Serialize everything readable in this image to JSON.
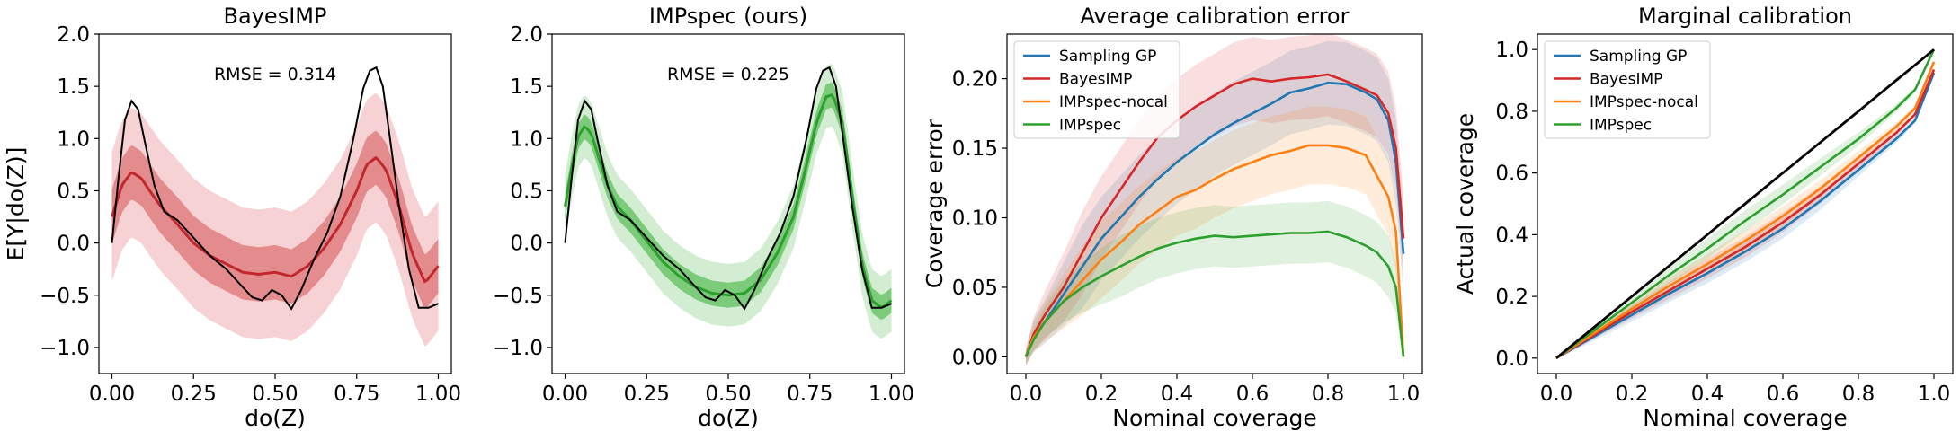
{
  "chart_data": [
    {
      "type": "line",
      "title": "BayesIMP",
      "xlabel": "do(Z)",
      "ylabel": "E[Y|do(Z)]",
      "xlim": [
        -0.04,
        1.04
      ],
      "ylim": [
        -1.25,
        2.0
      ],
      "xticks": [
        "0.00",
        "0.25",
        "0.50",
        "0.75",
        "1.00"
      ],
      "yticks": [
        "−1.0",
        "−0.5",
        "0.0",
        "0.5",
        "1.0",
        "1.5",
        "2.0"
      ],
      "annotation": "RMSE = 0.314",
      "colors": {
        "mean": "#c0282d",
        "inner": "#e07f80",
        "outer": "#f5cdd0",
        "truth": "#000000"
      },
      "truth": {
        "x": [
          0,
          0.02,
          0.04,
          0.06,
          0.08,
          0.1,
          0.13,
          0.16,
          0.2,
          0.25,
          0.3,
          0.35,
          0.4,
          0.43,
          0.46,
          0.49,
          0.52,
          0.55,
          0.58,
          0.62,
          0.66,
          0.7,
          0.74,
          0.77,
          0.79,
          0.81,
          0.83,
          0.85,
          0.88,
          0.91,
          0.94,
          0.97,
          1.0
        ],
        "y": [
          0.0,
          0.62,
          1.18,
          1.36,
          1.28,
          0.98,
          0.55,
          0.3,
          0.22,
          0.05,
          -0.12,
          -0.25,
          -0.42,
          -0.52,
          -0.55,
          -0.45,
          -0.5,
          -0.63,
          -0.45,
          -0.15,
          0.1,
          0.45,
          1.0,
          1.48,
          1.65,
          1.68,
          1.5,
          1.05,
          0.35,
          -0.25,
          -0.62,
          -0.62,
          -0.58
        ]
      },
      "mean": {
        "x": [
          0,
          0.03,
          0.06,
          0.09,
          0.12,
          0.15,
          0.2,
          0.25,
          0.3,
          0.35,
          0.4,
          0.45,
          0.5,
          0.55,
          0.6,
          0.65,
          0.7,
          0.75,
          0.78,
          0.81,
          0.84,
          0.88,
          0.92,
          0.96,
          1.0
        ],
        "y": [
          0.25,
          0.55,
          0.68,
          0.62,
          0.48,
          0.35,
          0.18,
          0.0,
          -0.12,
          -0.2,
          -0.28,
          -0.3,
          -0.28,
          -0.32,
          -0.22,
          -0.05,
          0.18,
          0.5,
          0.75,
          0.82,
          0.7,
          0.35,
          -0.1,
          -0.38,
          -0.22
        ]
      },
      "inner_half_width": 0.26,
      "outer_half_width": 0.62
    },
    {
      "type": "line",
      "title": "IMPspec (ours)",
      "xlabel": "do(Z)",
      "ylabel": "",
      "xlim": [
        -0.04,
        1.04
      ],
      "ylim": [
        -1.25,
        2.0
      ],
      "xticks": [
        "0.00",
        "0.25",
        "0.50",
        "0.75",
        "1.00"
      ],
      "yticks": [
        "−1.0",
        "−0.5",
        "0.0",
        "0.5",
        "1.0",
        "1.5",
        "2.0"
      ],
      "annotation": "RMSE = 0.225",
      "colors": {
        "mean": "#2ca02c",
        "inner": "#6cc46c",
        "outer": "#cdebcd",
        "truth": "#000000"
      },
      "truth": {
        "x": [
          0,
          0.02,
          0.04,
          0.06,
          0.08,
          0.1,
          0.13,
          0.16,
          0.2,
          0.25,
          0.3,
          0.35,
          0.4,
          0.43,
          0.46,
          0.49,
          0.52,
          0.55,
          0.58,
          0.62,
          0.66,
          0.7,
          0.74,
          0.77,
          0.79,
          0.81,
          0.83,
          0.85,
          0.88,
          0.91,
          0.94,
          0.97,
          1.0
        ],
        "y": [
          0.0,
          0.62,
          1.18,
          1.36,
          1.28,
          0.98,
          0.55,
          0.3,
          0.22,
          0.05,
          -0.12,
          -0.25,
          -0.42,
          -0.52,
          -0.55,
          -0.45,
          -0.5,
          -0.63,
          -0.45,
          -0.15,
          0.1,
          0.45,
          1.0,
          1.48,
          1.65,
          1.68,
          1.5,
          1.05,
          0.35,
          -0.25,
          -0.62,
          -0.62,
          -0.58
        ]
      },
      "mean": {
        "x": [
          0,
          0.02,
          0.04,
          0.06,
          0.08,
          0.1,
          0.13,
          0.16,
          0.2,
          0.25,
          0.3,
          0.35,
          0.4,
          0.45,
          0.5,
          0.55,
          0.6,
          0.65,
          0.7,
          0.74,
          0.77,
          0.8,
          0.82,
          0.85,
          0.88,
          0.91,
          0.94,
          0.97,
          1.0
        ],
        "y": [
          0.35,
          0.72,
          1.02,
          1.12,
          1.05,
          0.85,
          0.55,
          0.35,
          0.22,
          0.02,
          -0.18,
          -0.32,
          -0.42,
          -0.48,
          -0.5,
          -0.48,
          -0.35,
          -0.1,
          0.25,
          0.75,
          1.15,
          1.4,
          1.42,
          1.15,
          0.45,
          -0.2,
          -0.55,
          -0.62,
          -0.55
        ]
      },
      "inner_half_width": 0.12,
      "outer_half_width": 0.3
    },
    {
      "type": "line",
      "title": "Average calibration error",
      "xlabel": "Nominal coverage",
      "ylabel": "Coverage error",
      "xlim": [
        -0.05,
        1.05
      ],
      "ylim": [
        -0.012,
        0.232
      ],
      "xticks": [
        "0.0",
        "0.2",
        "0.4",
        "0.6",
        "0.8",
        "1.0"
      ],
      "yticks": [
        "0.00",
        "0.05",
        "0.10",
        "0.15",
        "0.20"
      ],
      "legend": {
        "placement": "upper-left",
        "entries": [
          "Sampling GP",
          "BayesIMP",
          "IMPspec-nocal",
          "IMPspec"
        ]
      },
      "x": [
        0,
        0.02,
        0.05,
        0.1,
        0.15,
        0.2,
        0.25,
        0.3,
        0.35,
        0.4,
        0.45,
        0.5,
        0.55,
        0.6,
        0.65,
        0.7,
        0.75,
        0.8,
        0.85,
        0.9,
        0.93,
        0.96,
        0.98,
        1.0
      ],
      "series": [
        {
          "name": "Sampling GP",
          "color": "#1f77b4",
          "values": [
            0,
            0.015,
            0.025,
            0.045,
            0.065,
            0.085,
            0.1,
            0.115,
            0.128,
            0.14,
            0.15,
            0.16,
            0.168,
            0.175,
            0.182,
            0.19,
            0.193,
            0.197,
            0.196,
            0.19,
            0.185,
            0.17,
            0.14,
            0.074
          ],
          "band": 0.03
        },
        {
          "name": "BayesIMP",
          "color": "#d62728",
          "values": [
            0,
            0.016,
            0.03,
            0.05,
            0.075,
            0.1,
            0.12,
            0.14,
            0.158,
            0.17,
            0.18,
            0.188,
            0.196,
            0.2,
            0.198,
            0.2,
            0.201,
            0.203,
            0.198,
            0.192,
            0.188,
            0.175,
            0.15,
            0.085
          ],
          "band": 0.03
        },
        {
          "name": "IMPspec-nocal",
          "color": "#ff7f0e",
          "values": [
            0,
            0.014,
            0.025,
            0.04,
            0.055,
            0.07,
            0.082,
            0.095,
            0.105,
            0.115,
            0.12,
            0.128,
            0.135,
            0.14,
            0.145,
            0.148,
            0.152,
            0.152,
            0.15,
            0.145,
            0.13,
            0.115,
            0.09,
            0.0
          ],
          "band": 0.028
        },
        {
          "name": "IMPspec",
          "color": "#2ca02c",
          "values": [
            0,
            0.012,
            0.025,
            0.04,
            0.05,
            0.058,
            0.065,
            0.072,
            0.078,
            0.082,
            0.085,
            0.087,
            0.086,
            0.087,
            0.088,
            0.089,
            0.089,
            0.09,
            0.086,
            0.08,
            0.075,
            0.065,
            0.05,
            0.0
          ],
          "band": 0.022
        }
      ]
    },
    {
      "type": "line",
      "title": "Marginal calibration",
      "xlabel": "Nominal coverage",
      "ylabel": "Actual coverage",
      "xlim": [
        -0.05,
        1.05
      ],
      "ylim": [
        -0.05,
        1.05
      ],
      "xticks": [
        "0.0",
        "0.2",
        "0.4",
        "0.6",
        "0.8",
        "1.0"
      ],
      "yticks": [
        "0.0",
        "0.2",
        "0.4",
        "0.6",
        "0.8",
        "1.0"
      ],
      "legend": {
        "placement": "upper-left",
        "entries": [
          "Sampling GP",
          "BayesIMP",
          "IMPspec-nocal",
          "IMPspec"
        ]
      },
      "x": [
        0,
        0.1,
        0.2,
        0.3,
        0.4,
        0.5,
        0.6,
        0.7,
        0.8,
        0.9,
        0.95,
        1.0
      ],
      "series": [
        {
          "name": "Sampling GP",
          "color": "#1f77b4",
          "values": [
            0,
            0.07,
            0.14,
            0.21,
            0.275,
            0.345,
            0.42,
            0.51,
            0.61,
            0.71,
            0.77,
            0.925
          ],
          "band": 0.025
        },
        {
          "name": "BayesIMP",
          "color": "#d62728",
          "values": [
            0,
            0.075,
            0.15,
            0.22,
            0.29,
            0.36,
            0.44,
            0.53,
            0.63,
            0.73,
            0.79,
            0.935
          ],
          "band": 0.025
        },
        {
          "name": "IMPspec-nocal",
          "color": "#ff7f0e",
          "values": [
            0,
            0.08,
            0.16,
            0.235,
            0.305,
            0.38,
            0.46,
            0.55,
            0.65,
            0.75,
            0.81,
            0.96
          ],
          "band": 0.025
        },
        {
          "name": "IMPspec",
          "color": "#2ca02c",
          "values": [
            0,
            0.09,
            0.18,
            0.27,
            0.355,
            0.445,
            0.53,
            0.62,
            0.71,
            0.81,
            0.87,
            1.0
          ],
          "band": 0.025
        },
        {
          "name": "",
          "color": "#000000",
          "values": [
            0,
            0.1,
            0.2,
            0.3,
            0.4,
            0.5,
            0.6,
            0.7,
            0.8,
            0.9,
            0.95,
            1.0
          ],
          "band": 0
        }
      ]
    }
  ]
}
